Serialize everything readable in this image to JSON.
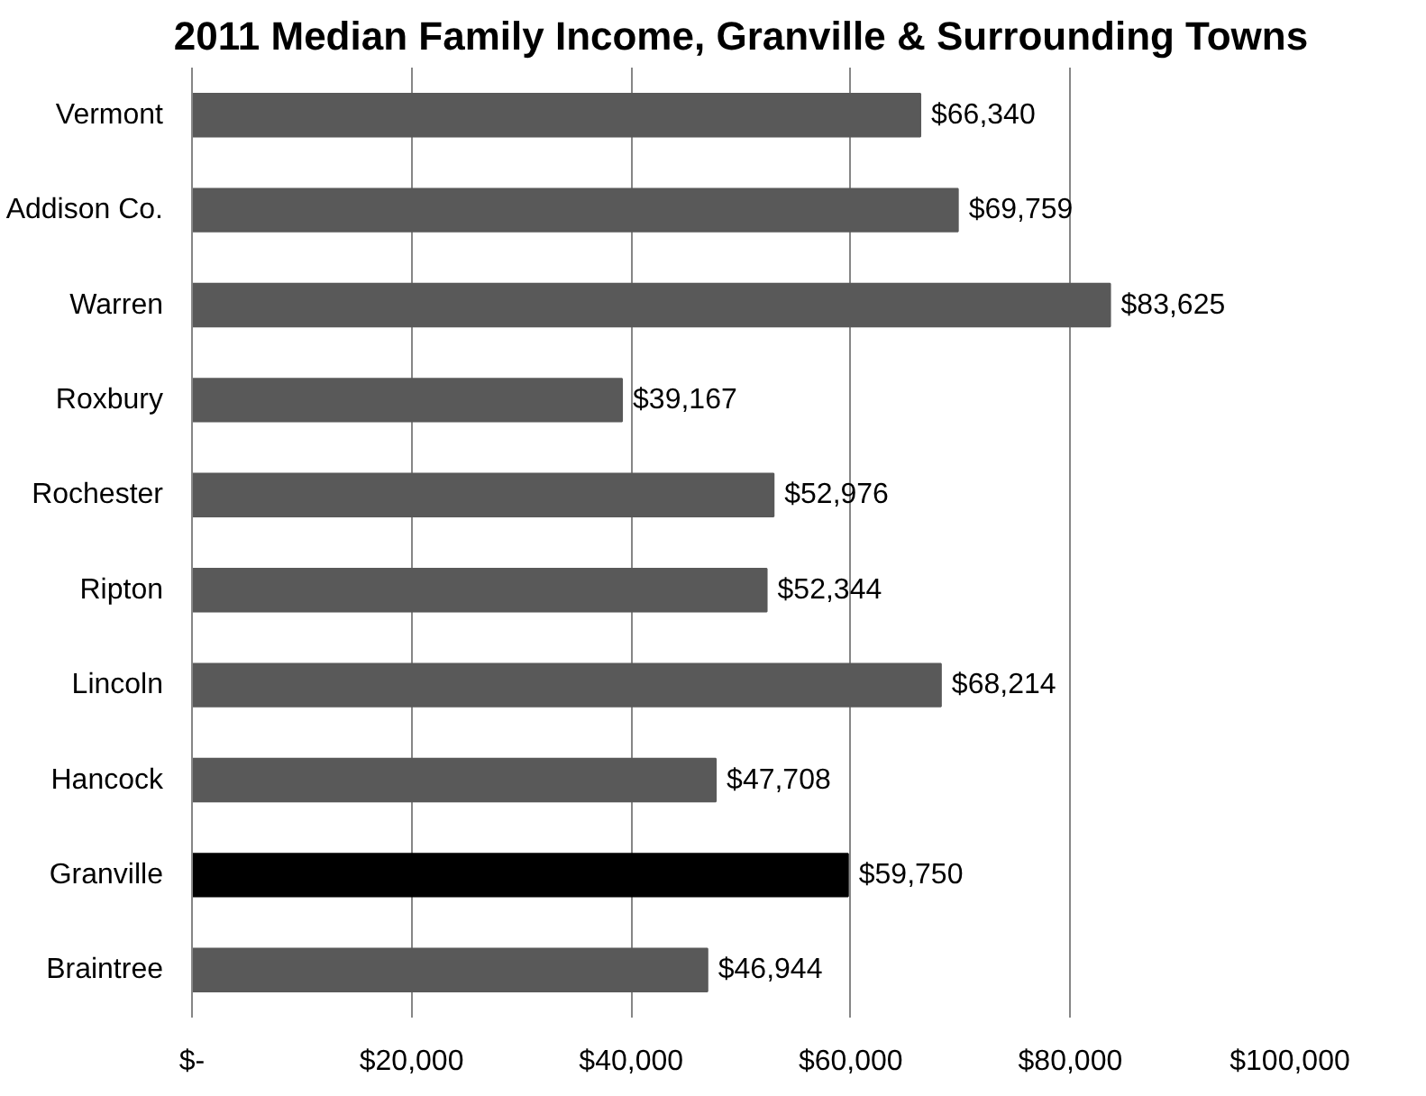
{
  "chart_data": {
    "type": "bar",
    "orientation": "horizontal",
    "title": "2011 Median Family Income, Granville & Surrounding Towns",
    "categories": [
      "Vermont",
      "Addison Co.",
      "Warren",
      "Roxbury",
      "Rochester",
      "Ripton",
      "Lincoln",
      "Hancock",
      "Granville",
      "Braintree"
    ],
    "values": [
      66340,
      69759,
      83625,
      39167,
      52976,
      52344,
      68214,
      47708,
      59750,
      46944
    ],
    "colors": [
      "#595959",
      "#595959",
      "#595959",
      "#595959",
      "#595959",
      "#595959",
      "#595959",
      "#595959",
      "#000000",
      "#595959"
    ],
    "value_labels": [
      "$66,340",
      "$69,759",
      "$83,625",
      "$39,167",
      "$52,976",
      "$52,344",
      "$68,214",
      "$47,708",
      "$59,750",
      "$46,944"
    ],
    "xlim": [
      0,
      100000
    ],
    "xticks": [
      {
        "value": 0,
        "label": "$-"
      },
      {
        "value": 20000,
        "label": "$20,000"
      },
      {
        "value": 40000,
        "label": "$40,000"
      },
      {
        "value": 60000,
        "label": "$60,000"
      },
      {
        "value": 80000,
        "label": "$80,000"
      },
      {
        "value": 100000,
        "label": "$100,000"
      }
    ],
    "grid": "x"
  }
}
